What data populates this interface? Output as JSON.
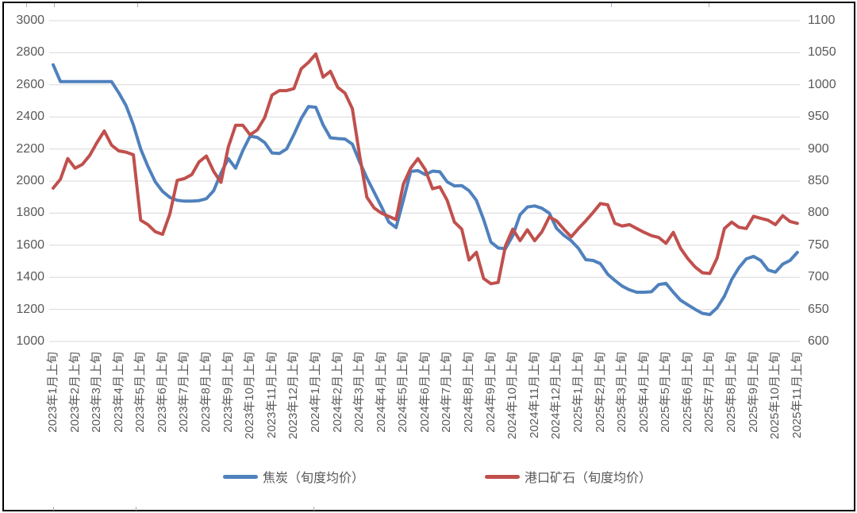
{
  "chart_data": {
    "type": "line",
    "title": "",
    "subtitle": "",
    "x_axis_unit": "旬",
    "points_per_month": 3,
    "x_tick_labels": [
      "2023年1月上旬",
      "2023年2月上旬",
      "2023年3月上旬",
      "2023年4月上旬",
      "2023年5月上旬",
      "2023年6月上旬",
      "2023年7月上旬",
      "2023年8月上旬",
      "2023年9月上旬",
      "2023年10月上旬",
      "2023年11月上旬",
      "2023年12月上旬",
      "2024年1月上旬",
      "2024年2月上旬",
      "2024年3月上旬",
      "2024年4月上旬",
      "2024年5月上旬",
      "2024年6月上旬",
      "2024年7月上旬",
      "2024年8月上旬",
      "2024年9月上旬",
      "2024年10月上旬",
      "2024年11月上旬",
      "2024年12月上旬",
      "2025年1月上旬",
      "2025年2月上旬",
      "2025年3月上旬",
      "2025年4月上旬",
      "2025年5月上旬",
      "2025年6月上旬",
      "2025年7月上旬",
      "2025年8月上旬",
      "2025年9月上旬",
      "2025年10月上旬",
      "2025年11月上旬"
    ],
    "left_axis": {
      "min": 1000,
      "max": 3000,
      "step": 200,
      "ticks": [
        3000,
        2800,
        2600,
        2400,
        2200,
        2000,
        1800,
        1600,
        1400,
        1200,
        1000
      ]
    },
    "right_axis": {
      "min": 600,
      "max": 1100,
      "step": 50,
      "ticks": [
        1100,
        1050,
        1000,
        950,
        900,
        850,
        800,
        750,
        700,
        650,
        600
      ]
    },
    "grid": "horizontal",
    "gridline_color": "#d9d9d9",
    "legend_position": "bottom",
    "series": [
      {
        "name": "焦炭（旬度均价）",
        "axis": "left",
        "color": "#4F81BD",
        "values": [
          2725,
          2620,
          2620,
          2620,
          2620,
          2620,
          2620,
          2620,
          2620,
          2550,
          2470,
          2350,
          2200,
          2090,
          1995,
          1935,
          1898,
          1880,
          1875,
          1875,
          1878,
          1890,
          1940,
          2050,
          2140,
          2080,
          2190,
          2280,
          2272,
          2240,
          2175,
          2172,
          2200,
          2290,
          2390,
          2465,
          2460,
          2350,
          2270,
          2265,
          2262,
          2230,
          2120,
          2020,
          1930,
          1840,
          1745,
          1710,
          1880,
          2060,
          2065,
          2040,
          2062,
          2058,
          1995,
          1970,
          1972,
          1940,
          1880,
          1760,
          1620,
          1583,
          1578,
          1660,
          1790,
          1838,
          1845,
          1830,
          1800,
          1705,
          1662,
          1628,
          1580,
          1510,
          1505,
          1485,
          1420,
          1380,
          1345,
          1322,
          1307,
          1307,
          1310,
          1355,
          1362,
          1307,
          1257,
          1228,
          1200,
          1175,
          1168,
          1210,
          1282,
          1386,
          1460,
          1515,
          1530,
          1505,
          1445,
          1432,
          1482,
          1505,
          1555
        ]
      },
      {
        "name": "港口矿石（旬度均价）",
        "axis": "right",
        "color": "#C0504D",
        "values": [
          839,
          853,
          885,
          870,
          876,
          890,
          910,
          928,
          906,
          897,
          895,
          891,
          789,
          782,
          771,
          767,
          799,
          851,
          854,
          860,
          880,
          889,
          865,
          848,
          903,
          937,
          937,
          922,
          930,
          949,
          984,
          991,
          991,
          994,
          1025,
          1035,
          1048,
          1012,
          1021,
          996,
          987,
          963,
          890,
          825,
          808,
          800,
          795,
          790,
          845,
          870,
          885,
          868,
          838,
          841,
          820,
          786,
          775,
          727,
          739,
          698,
          690,
          692,
          749,
          775,
          757,
          774,
          757,
          771,
          794,
          788,
          775,
          763,
          776,
          788,
          801,
          815,
          813,
          784,
          780,
          782,
          776,
          770,
          765,
          762,
          753,
          770,
          745,
          729,
          716,
          707,
          706,
          730,
          776,
          786,
          778,
          776,
          795,
          792,
          789,
          782,
          796,
          787,
          784
        ]
      }
    ]
  },
  "legend": {
    "coke_label": "焦炭（旬度均价）",
    "ore_label": "港口矿石（旬度均价）"
  }
}
